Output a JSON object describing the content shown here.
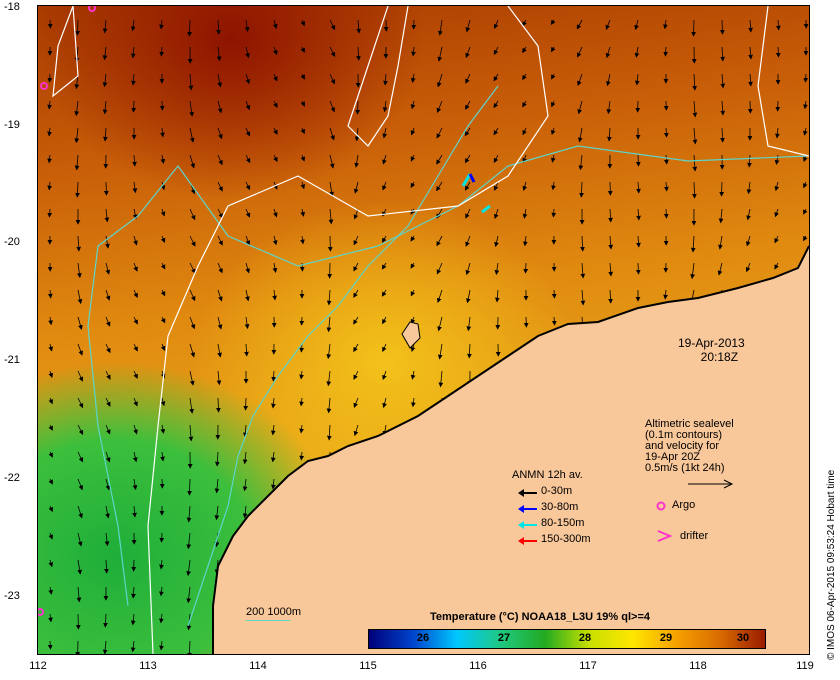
{
  "map": {
    "timestamp_date": "19-Apr-2013",
    "timestamp_time": "20:18Z",
    "altimetry_note": [
      "Altimetric sealevel",
      "(0.1m contours)",
      "and velocity for",
      "19-Apr 20Z",
      "0.5m/s (1kt 24h)"
    ],
    "x_ticks": [
      "112",
      "113",
      "114",
      "115",
      "116",
      "117",
      "118",
      "119"
    ],
    "y_ticks": [
      "-18",
      "-19",
      "-20",
      "-21",
      "-22",
      "-23"
    ],
    "depth_legend": "200  1000m",
    "credit": "© IMOS 06-Apr-2015 09:53:24 Hobart time",
    "colors": {
      "land": "#f8c79a",
      "depth_contour": "#5fd4c8",
      "sealevel_contour": "#ffffff",
      "argo": "#ff33cc",
      "drifter": "#ff33cc"
    }
  },
  "legend": {
    "title": "ANMN 12h av.",
    "items": [
      {
        "label": "0-30m",
        "color": "#000000"
      },
      {
        "label": "30-80m",
        "color": "#0000ff"
      },
      {
        "label": "80-150m",
        "color": "#00e5e5"
      },
      {
        "label": "150-300m",
        "color": "#ff0000"
      }
    ],
    "argo_label": "Argo",
    "drifter_label": "drifter"
  },
  "colorbar": {
    "title": "Temperature (°C) NOAA18_L3U 19% ql>=4",
    "ticks": [
      "26",
      "27",
      "28",
      "29",
      "30"
    ],
    "stops": [
      "#00007a",
      "#0044cc",
      "#00c8ff",
      "#1fc880",
      "#22aa22",
      "#c8e000",
      "#ffe600",
      "#f5a000",
      "#d86a00",
      "#9a1a00"
    ]
  }
}
